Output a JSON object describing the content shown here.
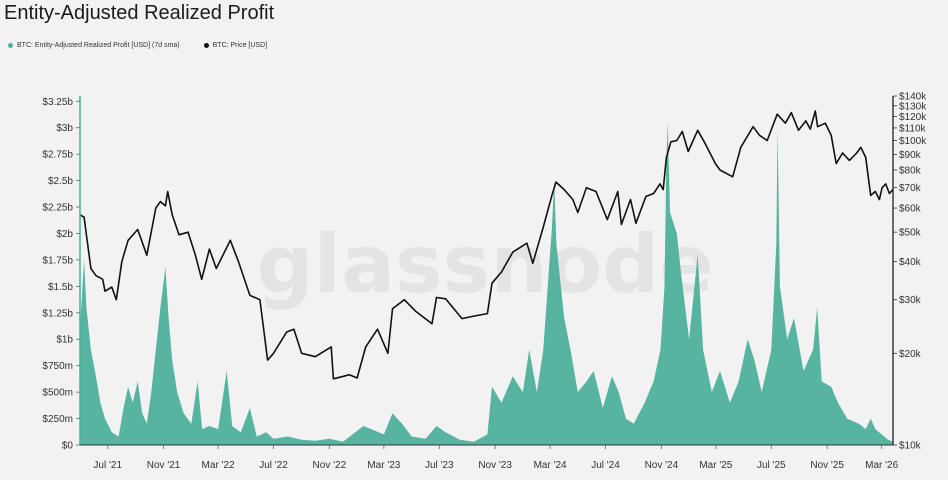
{
  "title": "Entity-Adjusted Realized Profit",
  "legend": [
    {
      "label": "BTC: Entity-Adjusted Realized Profit [USD] (7d sma)",
      "color": "#4db09b"
    },
    {
      "label": "BTC: Price [USD]",
      "color": "#111111"
    }
  ],
  "watermark": "glassnode",
  "chart_data": {
    "type": "area",
    "x_axis": {
      "type": "date",
      "range": [
        "2021-05-01",
        "2026-03-26"
      ],
      "tick_labels": [
        "Jul '21",
        "Nov '21",
        "Mar '22",
        "Jul '22",
        "Nov '22",
        "Mar '23",
        "Jul '23",
        "Nov '23",
        "Mar '24",
        "Jul '24",
        "Nov '24",
        "Mar '25",
        "Jul '25",
        "Nov '25",
        "Mar '26"
      ],
      "tick_dates": [
        "2021-07-01",
        "2021-11-01",
        "2022-03-01",
        "2022-07-01",
        "2022-11-01",
        "2023-03-01",
        "2023-07-01",
        "2023-11-01",
        "2024-03-01",
        "2024-07-01",
        "2024-11-01",
        "2025-03-01",
        "2025-07-01",
        "2025-11-01",
        "2026-03-01"
      ]
    },
    "y_left": {
      "label": "",
      "range": [
        0,
        3300000000
      ],
      "tick_values": [
        0,
        250000000,
        500000000,
        750000000,
        1000000000,
        1250000000,
        1500000000,
        1750000000,
        2000000000,
        2250000000,
        2500000000,
        2750000000,
        3000000000,
        3250000000
      ],
      "tick_labels": [
        "$0",
        "$250m",
        "$500m",
        "$750m",
        "$1b",
        "$1.25b",
        "$1.5b",
        "$1.75b",
        "$2b",
        "$2.25b",
        "$2.5b",
        "$2.75b",
        "$3b",
        "$3.25b"
      ]
    },
    "y_right": {
      "label": "",
      "scale": "log",
      "range": [
        10000,
        140000
      ],
      "tick_values": [
        10000,
        20000,
        30000,
        40000,
        50000,
        60000,
        70000,
        80000,
        90000,
        100000,
        110000,
        120000,
        130000,
        140000
      ],
      "tick_labels": [
        "$10k",
        "$20k",
        "$30k",
        "$40k",
        "$50k",
        "$60k",
        "$70k",
        "$80k",
        "$90k",
        "$100k",
        "$110k",
        "$120k",
        "$130k",
        "$140k"
      ]
    },
    "series": [
      {
        "name": "BTC: Entity-Adjusted Realized Profit [USD] (7d sma)",
        "type": "area",
        "axis": "left",
        "color": "#4db09b",
        "points": [
          [
            "2021-05-01",
            1100000000
          ],
          [
            "2021-05-10",
            1750000000
          ],
          [
            "2021-05-15",
            1300000000
          ],
          [
            "2021-05-25",
            900000000
          ],
          [
            "2021-06-05",
            650000000
          ],
          [
            "2021-06-15",
            400000000
          ],
          [
            "2021-06-25",
            250000000
          ],
          [
            "2021-07-10",
            120000000
          ],
          [
            "2021-07-25",
            80000000
          ],
          [
            "2021-08-05",
            350000000
          ],
          [
            "2021-08-15",
            550000000
          ],
          [
            "2021-08-25",
            400000000
          ],
          [
            "2021-09-05",
            600000000
          ],
          [
            "2021-09-15",
            300000000
          ],
          [
            "2021-09-25",
            200000000
          ],
          [
            "2021-10-05",
            500000000
          ],
          [
            "2021-10-15",
            900000000
          ],
          [
            "2021-10-25",
            1300000000
          ],
          [
            "2021-11-05",
            1680000000
          ],
          [
            "2021-11-12",
            1200000000
          ],
          [
            "2021-11-20",
            800000000
          ],
          [
            "2021-12-01",
            500000000
          ],
          [
            "2021-12-15",
            300000000
          ],
          [
            "2022-01-01",
            200000000
          ],
          [
            "2022-01-15",
            600000000
          ],
          [
            "2022-01-25",
            150000000
          ],
          [
            "2022-02-10",
            180000000
          ],
          [
            "2022-03-01",
            150000000
          ],
          [
            "2022-03-20",
            700000000
          ],
          [
            "2022-04-01",
            180000000
          ],
          [
            "2022-04-20",
            120000000
          ],
          [
            "2022-05-10",
            350000000
          ],
          [
            "2022-05-25",
            80000000
          ],
          [
            "2022-06-15",
            120000000
          ],
          [
            "2022-07-01",
            60000000
          ],
          [
            "2022-08-01",
            80000000
          ],
          [
            "2022-09-01",
            50000000
          ],
          [
            "2022-10-01",
            40000000
          ],
          [
            "2022-11-01",
            60000000
          ],
          [
            "2022-12-01",
            30000000
          ],
          [
            "2023-01-15",
            180000000
          ],
          [
            "2023-02-01",
            150000000
          ],
          [
            "2023-03-01",
            100000000
          ],
          [
            "2023-03-20",
            300000000
          ],
          [
            "2023-04-10",
            200000000
          ],
          [
            "2023-05-01",
            80000000
          ],
          [
            "2023-06-01",
            60000000
          ],
          [
            "2023-06-25",
            180000000
          ],
          [
            "2023-07-15",
            120000000
          ],
          [
            "2023-08-15",
            50000000
          ],
          [
            "2023-09-15",
            30000000
          ],
          [
            "2023-10-15",
            100000000
          ],
          [
            "2023-10-25",
            550000000
          ],
          [
            "2023-11-15",
            400000000
          ],
          [
            "2023-12-10",
            650000000
          ],
          [
            "2024-01-01",
            500000000
          ],
          [
            "2024-01-15",
            900000000
          ],
          [
            "2024-02-01",
            500000000
          ],
          [
            "2024-02-15",
            900000000
          ],
          [
            "2024-02-28",
            1700000000
          ],
          [
            "2024-03-05",
            2050000000
          ],
          [
            "2024-03-10",
            2500000000
          ],
          [
            "2024-03-15",
            1900000000
          ],
          [
            "2024-04-01",
            1200000000
          ],
          [
            "2024-04-15",
            900000000
          ],
          [
            "2024-05-01",
            500000000
          ],
          [
            "2024-05-20",
            600000000
          ],
          [
            "2024-06-05",
            700000000
          ],
          [
            "2024-06-25",
            350000000
          ],
          [
            "2024-07-15",
            650000000
          ],
          [
            "2024-07-30",
            500000000
          ],
          [
            "2024-08-15",
            250000000
          ],
          [
            "2024-09-01",
            200000000
          ],
          [
            "2024-09-25",
            400000000
          ],
          [
            "2024-10-15",
            600000000
          ],
          [
            "2024-10-30",
            900000000
          ],
          [
            "2024-11-08",
            1500000000
          ],
          [
            "2024-11-12",
            2700000000
          ],
          [
            "2024-11-15",
            3050000000
          ],
          [
            "2024-11-20",
            2200000000
          ],
          [
            "2024-12-05",
            2000000000
          ],
          [
            "2024-12-15",
            1600000000
          ],
          [
            "2025-01-01",
            1000000000
          ],
          [
            "2025-01-20",
            1800000000
          ],
          [
            "2025-02-01",
            900000000
          ],
          [
            "2025-02-20",
            500000000
          ],
          [
            "2025-03-10",
            700000000
          ],
          [
            "2025-04-01",
            400000000
          ],
          [
            "2025-04-20",
            600000000
          ],
          [
            "2025-05-10",
            1000000000
          ],
          [
            "2025-05-25",
            800000000
          ],
          [
            "2025-06-10",
            500000000
          ],
          [
            "2025-07-01",
            900000000
          ],
          [
            "2025-07-12",
            1900000000
          ],
          [
            "2025-07-15",
            3000000000
          ],
          [
            "2025-07-20",
            1500000000
          ],
          [
            "2025-08-05",
            1000000000
          ],
          [
            "2025-08-20",
            1200000000
          ],
          [
            "2025-09-10",
            700000000
          ],
          [
            "2025-10-01",
            900000000
          ],
          [
            "2025-10-10",
            1300000000
          ],
          [
            "2025-10-20",
            600000000
          ],
          [
            "2025-11-10",
            550000000
          ],
          [
            "2025-11-25",
            400000000
          ],
          [
            "2025-12-15",
            250000000
          ],
          [
            "2026-01-10",
            200000000
          ],
          [
            "2026-01-25",
            150000000
          ],
          [
            "2026-02-05",
            250000000
          ],
          [
            "2026-02-15",
            150000000
          ],
          [
            "2026-03-01",
            100000000
          ],
          [
            "2026-03-15",
            50000000
          ],
          [
            "2026-03-26",
            30000000
          ]
        ]
      },
      {
        "name": "BTC: Price [USD]",
        "type": "line",
        "axis": "right",
        "color": "#111111",
        "points": [
          [
            "2021-05-01",
            57000
          ],
          [
            "2021-05-10",
            56000
          ],
          [
            "2021-05-15",
            49000
          ],
          [
            "2021-05-25",
            38000
          ],
          [
            "2021-06-05",
            36000
          ],
          [
            "2021-06-20",
            35000
          ],
          [
            "2021-06-25",
            32000
          ],
          [
            "2021-07-10",
            33000
          ],
          [
            "2021-07-20",
            30000
          ],
          [
            "2021-08-01",
            40000
          ],
          [
            "2021-08-15",
            47000
          ],
          [
            "2021-09-05",
            51000
          ],
          [
            "2021-09-25",
            42000
          ],
          [
            "2021-10-15",
            60000
          ],
          [
            "2021-10-25",
            63000
          ],
          [
            "2021-11-05",
            61000
          ],
          [
            "2021-11-10",
            68000
          ],
          [
            "2021-11-20",
            57000
          ],
          [
            "2021-12-05",
            49000
          ],
          [
            "2021-12-25",
            50000
          ],
          [
            "2022-01-10",
            42000
          ],
          [
            "2022-01-24",
            35000
          ],
          [
            "2022-02-10",
            44000
          ],
          [
            "2022-02-25",
            38000
          ],
          [
            "2022-03-28",
            47000
          ],
          [
            "2022-04-15",
            40000
          ],
          [
            "2022-05-10",
            31000
          ],
          [
            "2022-06-01",
            30000
          ],
          [
            "2022-06-18",
            19000
          ],
          [
            "2022-07-01",
            20000
          ],
          [
            "2022-07-30",
            23500
          ],
          [
            "2022-08-15",
            24000
          ],
          [
            "2022-09-01",
            20000
          ],
          [
            "2022-10-01",
            19500
          ],
          [
            "2022-11-05",
            21000
          ],
          [
            "2022-11-10",
            16500
          ],
          [
            "2022-12-15",
            17000
          ],
          [
            "2023-01-01",
            16600
          ],
          [
            "2023-01-20",
            21000
          ],
          [
            "2023-02-15",
            24000
          ],
          [
            "2023-03-10",
            20000
          ],
          [
            "2023-03-20",
            28000
          ],
          [
            "2023-04-15",
            30000
          ],
          [
            "2023-05-10",
            27500
          ],
          [
            "2023-06-15",
            25000
          ],
          [
            "2023-06-25",
            30500
          ],
          [
            "2023-07-15",
            30200
          ],
          [
            "2023-08-20",
            26000
          ],
          [
            "2023-09-15",
            26500
          ],
          [
            "2023-10-15",
            27000
          ],
          [
            "2023-10-25",
            34000
          ],
          [
            "2023-11-15",
            37000
          ],
          [
            "2023-12-10",
            43000
          ],
          [
            "2024-01-10",
            46000
          ],
          [
            "2024-01-23",
            39500
          ],
          [
            "2024-02-15",
            52000
          ],
          [
            "2024-03-05",
            66000
          ],
          [
            "2024-03-14",
            73000
          ],
          [
            "2024-04-01",
            69000
          ],
          [
            "2024-04-20",
            64000
          ],
          [
            "2024-05-01",
            58000
          ],
          [
            "2024-05-20",
            70000
          ],
          [
            "2024-06-10",
            68000
          ],
          [
            "2024-07-05",
            55000
          ],
          [
            "2024-07-28",
            68000
          ],
          [
            "2024-08-05",
            53000
          ],
          [
            "2024-08-25",
            64000
          ],
          [
            "2024-09-06",
            53500
          ],
          [
            "2024-09-28",
            65500
          ],
          [
            "2024-10-15",
            67000
          ],
          [
            "2024-10-29",
            72000
          ],
          [
            "2024-11-05",
            69000
          ],
          [
            "2024-11-12",
            88000
          ],
          [
            "2024-11-22",
            99000
          ],
          [
            "2024-12-05",
            100000
          ],
          [
            "2024-12-17",
            107000
          ],
          [
            "2024-12-30",
            92000
          ],
          [
            "2025-01-20",
            108000
          ],
          [
            "2025-02-05",
            98000
          ],
          [
            "2025-02-28",
            84000
          ],
          [
            "2025-03-10",
            80000
          ],
          [
            "2025-04-07",
            76000
          ],
          [
            "2025-04-25",
            95000
          ],
          [
            "2025-05-22",
            111000
          ],
          [
            "2025-06-05",
            104000
          ],
          [
            "2025-06-22",
            100000
          ],
          [
            "2025-07-14",
            122000
          ],
          [
            "2025-08-01",
            114000
          ],
          [
            "2025-08-14",
            123500
          ],
          [
            "2025-08-30",
            108000
          ],
          [
            "2025-09-15",
            116000
          ],
          [
            "2025-09-25",
            109000
          ],
          [
            "2025-10-06",
            125000
          ],
          [
            "2025-10-11",
            111000
          ],
          [
            "2025-10-28",
            114000
          ],
          [
            "2025-11-10",
            104000
          ],
          [
            "2025-11-21",
            84000
          ],
          [
            "2025-12-05",
            91000
          ],
          [
            "2025-12-20",
            86000
          ],
          [
            "2026-01-05",
            91000
          ],
          [
            "2026-01-14",
            95000
          ],
          [
            "2026-01-25",
            88000
          ],
          [
            "2026-02-05",
            66000
          ],
          [
            "2026-02-15",
            68000
          ],
          [
            "2026-02-24",
            64000
          ],
          [
            "2026-03-02",
            70000
          ],
          [
            "2026-03-10",
            72000
          ],
          [
            "2026-03-18",
            67000
          ],
          [
            "2026-03-26",
            69000
          ]
        ]
      }
    ]
  }
}
